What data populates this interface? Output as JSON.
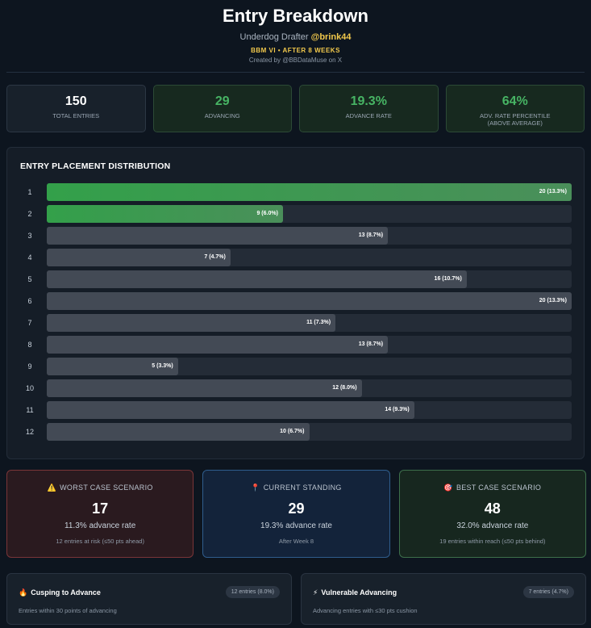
{
  "header": {
    "title": "Entry Breakdown",
    "subtitle_prefix": "Underdog Drafter",
    "handle": "@brink44",
    "tagline": "BBM VI • AFTER 8 WEEKS",
    "credit": "Created by @BBDataMuse on X"
  },
  "stats": [
    {
      "value": "150",
      "label": "TOTAL ENTRIES",
      "highlight": false
    },
    {
      "value": "29",
      "label": "ADVANCING",
      "highlight": true
    },
    {
      "value": "19.3%",
      "label": "ADVANCE RATE",
      "highlight": true
    },
    {
      "value": "64%",
      "label": "ADV. RATE PERCENTILE",
      "label2": "(ABOVE AVERAGE)",
      "highlight": true
    }
  ],
  "distribution": {
    "title": "ENTRY PLACEMENT DISTRIBUTION",
    "max_count": 20,
    "rows": [
      {
        "rank": "1",
        "count": 20,
        "label": "20 (13.3%)",
        "advancing": true
      },
      {
        "rank": "2",
        "count": 9,
        "label": "9 (6.0%)",
        "advancing": true
      },
      {
        "rank": "3",
        "count": 13,
        "label": "13 (8.7%)",
        "advancing": false
      },
      {
        "rank": "4",
        "count": 7,
        "label": "7 (4.7%)",
        "advancing": false
      },
      {
        "rank": "5",
        "count": 16,
        "label": "16 (10.7%)",
        "advancing": false
      },
      {
        "rank": "6",
        "count": 20,
        "label": "20 (13.3%)",
        "advancing": false
      },
      {
        "rank": "7",
        "count": 11,
        "label": "11 (7.3%)",
        "advancing": false
      },
      {
        "rank": "8",
        "count": 13,
        "label": "13 (8.7%)",
        "advancing": false
      },
      {
        "rank": "9",
        "count": 5,
        "label": "5 (3.3%)",
        "advancing": false
      },
      {
        "rank": "10",
        "count": 12,
        "label": "12 (8.0%)",
        "advancing": false
      },
      {
        "rank": "11",
        "count": 14,
        "label": "14 (9.3%)",
        "advancing": false
      },
      {
        "rank": "12",
        "count": 10,
        "label": "10 (6.7%)",
        "advancing": false
      }
    ]
  },
  "scenarios": {
    "worst": {
      "icon": "⚠️",
      "title": "WORST CASE SCENARIO",
      "value": "17",
      "rate": "11.3% advance rate",
      "note": "12 entries at risk (≤50 pts ahead)"
    },
    "current": {
      "icon": "📍",
      "title": "CURRENT STANDING",
      "value": "29",
      "rate": "19.3% advance rate",
      "note": "After Week 8"
    },
    "best": {
      "icon": "🎯",
      "title": "BEST CASE SCENARIO",
      "value": "48",
      "rate": "32.0% advance rate",
      "note": "19 entries within reach (≤50 pts behind)"
    }
  },
  "cusping": {
    "icon": "🔥",
    "title": "Cusping to Advance",
    "pill": "12 entries (8.0%)",
    "subtitle": "Entries within 30 points of advancing"
  },
  "vulnerable": {
    "icon": "⚡",
    "title": "Vulnerable Advancing",
    "pill": "7 entries (4.7%)",
    "subtitle": "Advancing entries with ≤30 pts cushion"
  }
}
